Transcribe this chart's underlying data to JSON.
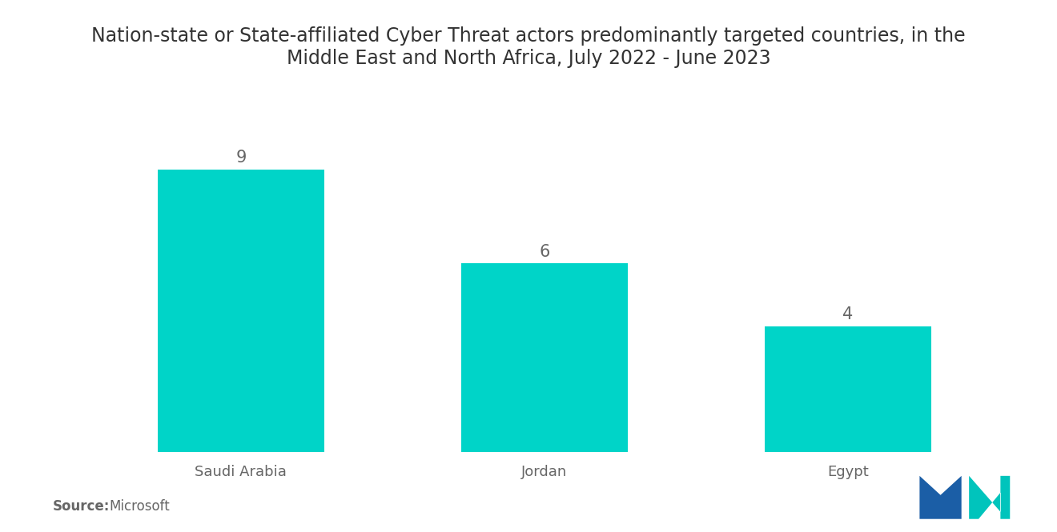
{
  "title": "Nation-state or State-affiliated Cyber Threat actors predominantly targeted countries, in the\nMiddle East and North Africa, July 2022 - June 2023",
  "categories": [
    "Saudi Arabia",
    "Jordan",
    "Egypt"
  ],
  "values": [
    9,
    6,
    4
  ],
  "bar_color": "#00D4C8",
  "value_color": "#666666",
  "label_color": "#666666",
  "title_color": "#333333",
  "background_color": "#ffffff",
  "source_label": "Source:",
  "source_text": "  Microsoft",
  "title_fontsize": 17,
  "label_fontsize": 13,
  "value_fontsize": 15,
  "source_fontsize": 12,
  "ylim": [
    0,
    11
  ],
  "bar_width": 0.55,
  "xlim": [
    -0.55,
    2.55
  ]
}
